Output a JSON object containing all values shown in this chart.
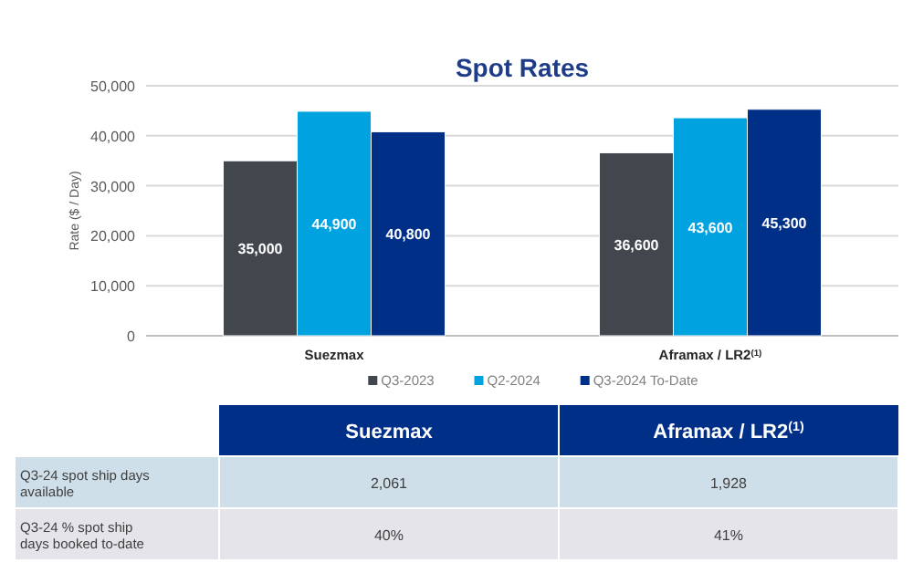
{
  "chart_data": [
    {
      "type": "bar",
      "title": "Spot Rates",
      "ylabel": "Rate ($ / Day)",
      "categories": [
        "Suezmax",
        "Aframax / LR2$^{(1)}$"
      ],
      "series": [
        {
          "name": "Q3-2023",
          "color": "#41474d",
          "values": [
            35000,
            36600
          ],
          "value_labels": [
            "35,000",
            "36,600"
          ]
        },
        {
          "name": "Q2-2024",
          "color": "#00a3e0",
          "values": [
            44900,
            43600
          ],
          "value_labels": [
            "44,900",
            "43,600"
          ]
        },
        {
          "name": "Q3-2024 To-Date",
          "color": "#002f87",
          "values": [
            40800,
            45300
          ],
          "value_labels": [
            "40,800",
            "45,300"
          ]
        }
      ],
      "ylim": [
        0,
        50000
      ],
      "yticks": [
        {
          "value": 0,
          "label": "0"
        },
        {
          "value": 10000,
          "label": "10,000"
        },
        {
          "value": 20000,
          "label": "20,000"
        },
        {
          "value": 30000,
          "label": "30,000"
        },
        {
          "value": 40000,
          "label": "40,000"
        },
        {
          "value": 50000,
          "label": "50,000"
        }
      ],
      "grid": "y",
      "legend": "bottom"
    },
    {
      "type": "other",
      "categories": [
        "Suezmax",
        "Aframax / LR2$^{(1)}$"
      ],
      "y_categories": [
        "Q3-24 spot ship days available",
        "Q3-24 % spot ship days booked to-date"
      ],
      "cell_labels": [
        [
          "2,061",
          "1,928"
        ],
        [
          "40%",
          "41%"
        ]
      ]
    }
  ]
}
